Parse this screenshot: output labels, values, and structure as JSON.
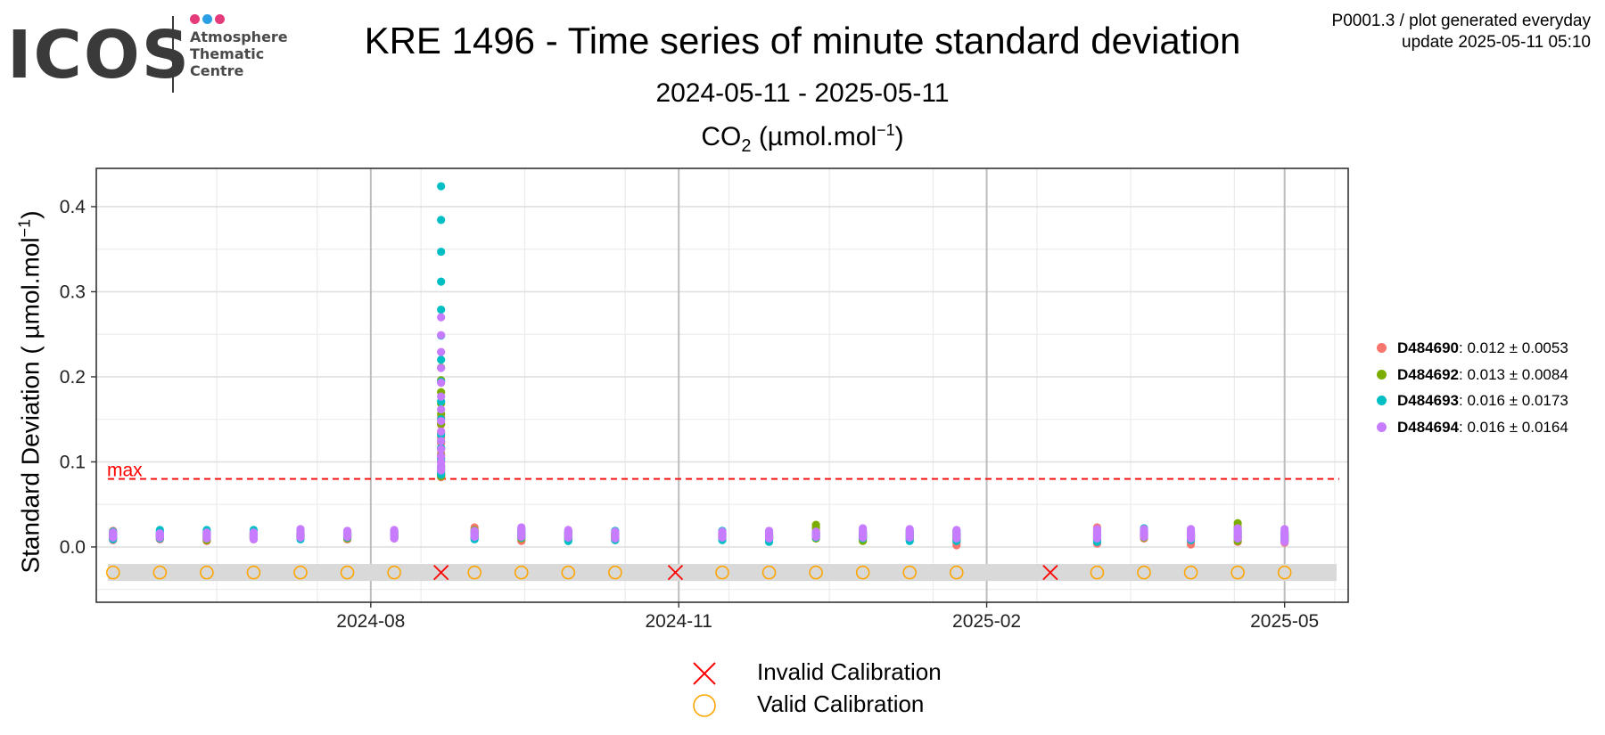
{
  "logo": {
    "word": "ICOS",
    "line1": "Atmosphere",
    "line2": "Thematic",
    "line3": "Centre",
    "dot_colors": [
      "#e53a7b",
      "#2b9fe6",
      "#e53a7b"
    ]
  },
  "header": {
    "title": "KRE 1496 - Time series of minute standard deviation",
    "subtitle": "2024-05-11 - 2025-05-11",
    "species_name": "CO",
    "species_sub": "2",
    "species_unit_pre": " (µmol.mol",
    "species_unit_sup": "−1",
    "species_unit_post": ")",
    "meta_line1": "P0001.3 / plot generated everyday",
    "meta_line2": "update  2025-05-11 05:10"
  },
  "chart_data": {
    "type": "scatter",
    "ylabel_pre": "Standard Deviation ( µmol.mol",
    "ylabel_sup": "−1",
    "ylabel_post": ")",
    "xlim": [
      "2024-05-11",
      "2025-05-20"
    ],
    "ylim": [
      -0.065,
      0.445
    ],
    "yticks": [
      0.0,
      0.1,
      0.2,
      0.3,
      0.4
    ],
    "ytick_labels": [
      "0.0",
      "0.1",
      "0.2",
      "0.3",
      "0.4"
    ],
    "xticks": [
      "2024-08-01",
      "2024-11-01",
      "2025-02-01",
      "2025-05-01"
    ],
    "xtick_labels": [
      "2024-08",
      "2024-11",
      "2025-02",
      "2025-05"
    ],
    "grid": true,
    "max_threshold": 0.08,
    "max_label": "max",
    "max_color": "#ff0000",
    "band": [
      -0.04,
      -0.02
    ],
    "series": [
      {
        "name": "D484690",
        "color": "#f8766d",
        "stats": ": 0.012 ± 0.0053"
      },
      {
        "name": "D484692",
        "color": "#7cae00",
        "stats": ": 0.013 ± 0.0084"
      },
      {
        "name": "D484693",
        "color": "#00bfc4",
        "stats": ": 0.016 ± 0.0173"
      },
      {
        "name": "D484694",
        "color": "#c77cff",
        "stats": ": 0.016 ± 0.0164"
      }
    ],
    "sessions": [
      {
        "date": "2024-05-16",
        "values": [
          [
            0.008,
            0.019
          ],
          [
            0.01,
            0.016
          ],
          [
            0.009,
            0.018
          ],
          [
            0.011,
            0.017
          ]
        ]
      },
      {
        "date": "2024-05-30",
        "values": [
          [
            0.009,
            0.015
          ],
          [
            0.01,
            0.014
          ],
          [
            0.01,
            0.02
          ],
          [
            0.011,
            0.016
          ]
        ]
      },
      {
        "date": "2024-06-13",
        "values": [
          [
            0.007,
            0.016
          ],
          [
            0.008,
            0.014
          ],
          [
            0.01,
            0.02
          ],
          [
            0.01,
            0.017
          ]
        ]
      },
      {
        "date": "2024-06-27",
        "values": [
          [
            0.009,
            0.015
          ],
          [
            0.01,
            0.016
          ],
          [
            0.01,
            0.02
          ],
          [
            0.009,
            0.017
          ]
        ]
      },
      {
        "date": "2024-07-11",
        "values": [
          [
            0.01,
            0.016
          ],
          [
            0.011,
            0.015
          ],
          [
            0.009,
            0.018
          ],
          [
            0.011,
            0.021
          ]
        ]
      },
      {
        "date": "2024-07-25",
        "values": [
          [
            0.009,
            0.017
          ],
          [
            0.01,
            0.016
          ],
          [
            0.011,
            0.018
          ],
          [
            0.012,
            0.019
          ]
        ]
      },
      {
        "date": "2024-08-08",
        "values": [
          [
            0.01,
            0.018
          ],
          [
            0.011,
            0.017
          ],
          [
            0.011,
            0.019
          ],
          [
            0.01,
            0.02
          ]
        ]
      },
      {
        "date": "2024-08-22",
        "values": [
          [
            0.082,
            0.152
          ],
          [
            0.083,
            0.211
          ],
          [
            0.085,
            0.424
          ],
          [
            0.09,
            0.27
          ]
        ],
        "invalid": true
      },
      {
        "date": "2024-09-01",
        "values": [
          [
            0.01,
            0.023
          ],
          [
            0.011,
            0.02
          ],
          [
            0.009,
            0.018
          ],
          [
            0.012,
            0.019
          ]
        ]
      },
      {
        "date": "2024-09-15",
        "values": [
          [
            0.007,
            0.019
          ],
          [
            0.01,
            0.021
          ],
          [
            0.011,
            0.02
          ],
          [
            0.012,
            0.023
          ]
        ]
      },
      {
        "date": "2024-09-29",
        "values": [
          [
            0.008,
            0.017
          ],
          [
            0.009,
            0.016
          ],
          [
            0.007,
            0.019
          ],
          [
            0.011,
            0.02
          ]
        ]
      },
      {
        "date": "2024-10-13",
        "values": [
          [
            0.008,
            0.016
          ],
          [
            0.009,
            0.015
          ],
          [
            0.008,
            0.019
          ],
          [
            0.01,
            0.018
          ]
        ]
      },
      {
        "date": "2024-10-31",
        "values": [],
        "invalid": true
      },
      {
        "date": "2024-11-14",
        "values": [
          [
            0.009,
            0.016
          ],
          [
            0.01,
            0.015
          ],
          [
            0.008,
            0.019
          ],
          [
            0.011,
            0.018
          ]
        ]
      },
      {
        "date": "2024-11-28",
        "values": [
          [
            0.008,
            0.015
          ],
          [
            0.009,
            0.014
          ],
          [
            0.006,
            0.018
          ],
          [
            0.01,
            0.019
          ]
        ]
      },
      {
        "date": "2024-12-12",
        "values": [
          [
            0.01,
            0.018
          ],
          [
            0.01,
            0.026
          ],
          [
            0.011,
            0.017
          ],
          [
            0.012,
            0.018
          ]
        ]
      },
      {
        "date": "2024-12-26",
        "values": [
          [
            0.009,
            0.019
          ],
          [
            0.007,
            0.015
          ],
          [
            0.01,
            0.018
          ],
          [
            0.011,
            0.022
          ]
        ]
      },
      {
        "date": "2025-01-09",
        "values": [
          [
            0.009,
            0.018
          ],
          [
            0.01,
            0.016
          ],
          [
            0.007,
            0.019
          ],
          [
            0.011,
            0.021
          ]
        ]
      },
      {
        "date": "2025-01-23",
        "values": [
          [
            0.002,
            0.016
          ],
          [
            0.008,
            0.015
          ],
          [
            0.007,
            0.019
          ],
          [
            0.01,
            0.02
          ]
        ]
      },
      {
        "date": "2025-02-20",
        "values": [],
        "invalid": true
      },
      {
        "date": "2025-03-06",
        "values": [
          [
            0.004,
            0.023
          ],
          [
            0.008,
            0.016
          ],
          [
            0.006,
            0.019
          ],
          [
            0.01,
            0.021
          ]
        ]
      },
      {
        "date": "2025-03-20",
        "values": [
          [
            0.01,
            0.017
          ],
          [
            0.011,
            0.016
          ],
          [
            0.012,
            0.022
          ],
          [
            0.012,
            0.021
          ]
        ]
      },
      {
        "date": "2025-04-03",
        "values": [
          [
            0.003,
            0.016
          ],
          [
            0.009,
            0.015
          ],
          [
            0.008,
            0.018
          ],
          [
            0.01,
            0.021
          ]
        ]
      },
      {
        "date": "2025-04-17",
        "values": [
          [
            0.006,
            0.018
          ],
          [
            0.007,
            0.028
          ],
          [
            0.01,
            0.02
          ],
          [
            0.01,
            0.022
          ]
        ]
      },
      {
        "date": "2025-05-01",
        "values": [
          [
            0.005,
            0.016
          ],
          [
            0.008,
            0.015
          ],
          [
            0.007,
            0.018
          ],
          [
            0.006,
            0.021
          ]
        ]
      }
    ]
  },
  "bottom_legend": {
    "invalid_label": "Invalid Calibration",
    "valid_label": "Valid Calibration",
    "invalid_color": "#ff0000",
    "valid_color": "#ffa500"
  }
}
